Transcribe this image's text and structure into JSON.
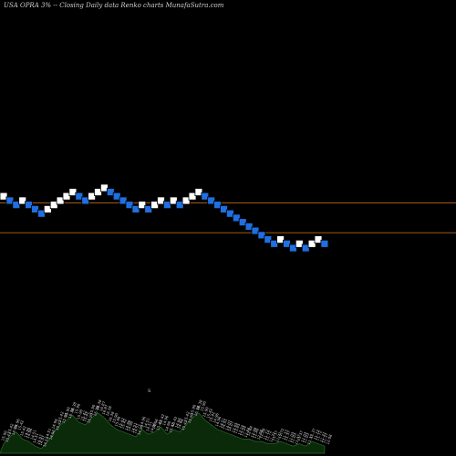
{
  "header": {
    "title": "USA OPRA 3% -- Closing Daily data Renko charts MunafaSutra.com"
  },
  "colors": {
    "background": "#000000",
    "up_brick": "#ffffff",
    "down_brick": "#1f6fe0",
    "brick_edge": "#000000",
    "level_line": "#b8671a",
    "volume_fill": "#0a2a0a",
    "volume_stroke": "#2a6a2a",
    "label_text": "#d8d8d8"
  },
  "chart_data": {
    "type": "renko",
    "box_size_percent": 3,
    "bricks": [
      {
        "dir": "up",
        "value": 15.9
      },
      {
        "dir": "down",
        "value": 15.42
      },
      {
        "dir": "down",
        "value": 14.96
      },
      {
        "dir": "up",
        "value": 15.42
      },
      {
        "dir": "down",
        "value": 14.96
      },
      {
        "dir": "down",
        "value": 14.51
      },
      {
        "dir": "down",
        "value": 14.07
      },
      {
        "dir": "up",
        "value": 14.51
      },
      {
        "dir": "up",
        "value": 14.96
      },
      {
        "dir": "up",
        "value": 15.42
      },
      {
        "dir": "up",
        "value": 15.9
      },
      {
        "dir": "up",
        "value": 16.38
      },
      {
        "dir": "down",
        "value": 15.9
      },
      {
        "dir": "down",
        "value": 15.42
      },
      {
        "dir": "up",
        "value": 15.9
      },
      {
        "dir": "up",
        "value": 16.38
      },
      {
        "dir": "up",
        "value": 16.87
      },
      {
        "dir": "down",
        "value": 16.38
      },
      {
        "dir": "down",
        "value": 15.9
      },
      {
        "dir": "down",
        "value": 15.42
      },
      {
        "dir": "down",
        "value": 14.96
      },
      {
        "dir": "down",
        "value": 14.51
      },
      {
        "dir": "up",
        "value": 14.96
      },
      {
        "dir": "down",
        "value": 14.51
      },
      {
        "dir": "up",
        "value": 14.96
      },
      {
        "dir": "up",
        "value": 15.42
      },
      {
        "dir": "down",
        "value": 14.96
      },
      {
        "dir": "up",
        "value": 15.42
      },
      {
        "dir": "down",
        "value": 14.96
      },
      {
        "dir": "up",
        "value": 15.42
      },
      {
        "dir": "up",
        "value": 15.9
      },
      {
        "dir": "up",
        "value": 16.38
      },
      {
        "dir": "down",
        "value": 15.9
      },
      {
        "dir": "down",
        "value": 15.42
      },
      {
        "dir": "down",
        "value": 14.96
      },
      {
        "dir": "down",
        "value": 14.51
      },
      {
        "dir": "down",
        "value": 14.07
      },
      {
        "dir": "down",
        "value": 13.65
      },
      {
        "dir": "down",
        "value": 13.24
      },
      {
        "dir": "down",
        "value": 12.84
      },
      {
        "dir": "down",
        "value": 12.46
      },
      {
        "dir": "down",
        "value": 12.08
      },
      {
        "dir": "down",
        "value": 11.72
      },
      {
        "dir": "down",
        "value": 11.37
      },
      {
        "dir": "up",
        "value": 11.72
      },
      {
        "dir": "down",
        "value": 11.37
      },
      {
        "dir": "down",
        "value": 11.03
      },
      {
        "dir": "up",
        "value": 11.37
      },
      {
        "dir": "down",
        "value": 11.03
      },
      {
        "dir": "up",
        "value": 11.37
      },
      {
        "dir": "up",
        "value": 11.72
      },
      {
        "dir": "down",
        "value": 11.37
      }
    ],
    "reference_lines": [
      15.18,
      12.29
    ],
    "volume": [
      4,
      7,
      9,
      6,
      5,
      3,
      2,
      5,
      9,
      12,
      14,
      16,
      13,
      12,
      15,
      17,
      15,
      12,
      10,
      9,
      8,
      7,
      10,
      8,
      9,
      11,
      8,
      10,
      9,
      12,
      15,
      17,
      14,
      12,
      10,
      9,
      8,
      7,
      6,
      6,
      5,
      5,
      4,
      4,
      5,
      4,
      3,
      4,
      3,
      5,
      4,
      3
    ],
    "volume_labels": [
      {
        "line1": "15.90",
        "line2": "15.42"
      },
      {
        "line1": "15.42",
        "line2": "14.96"
      },
      {
        "line1": "14.96",
        "line2": "15.42"
      },
      {
        "line1": "15.42",
        "line2": "14.96"
      },
      {
        "line1": "14.96",
        "line2": "14.51"
      },
      {
        "line1": "14.51",
        "line2": "14.07"
      },
      {
        "line1": "14.07",
        "line2": "14.51"
      },
      {
        "line1": "14.51",
        "line2": "14.96"
      },
      {
        "line1": "14.96",
        "line2": "15.42"
      },
      {
        "line1": "15.42",
        "line2": "15.90"
      },
      {
        "line1": "15.90",
        "line2": "16.38"
      },
      {
        "line1": "16.38",
        "line2": "15.90"
      },
      {
        "line1": "15.90",
        "line2": "15.42"
      },
      {
        "line1": "15.42",
        "line2": "15.90"
      },
      {
        "line1": "15.90",
        "line2": "16.38"
      },
      {
        "line1": "16.38",
        "line2": "16.87"
      },
      {
        "line1": "16.87",
        "line2": "16.38"
      },
      {
        "line1": "16.38",
        "line2": "15.90"
      },
      {
        "line1": "15.90",
        "line2": "15.42"
      },
      {
        "line1": "15.42",
        "line2": "14.96"
      },
      {
        "line1": "14.96",
        "line2": "14.51"
      },
      {
        "line1": "14.51",
        "line2": "14.96"
      },
      {
        "line1": "14.96",
        "line2": "14.51"
      },
      {
        "line1": "14.51",
        "line2": "14.96"
      },
      {
        "line1": "14.96",
        "line2": "15.42"
      },
      {
        "line1": "15.42",
        "line2": "14.96"
      },
      {
        "line1": "14.96",
        "line2": "15.42"
      },
      {
        "line1": "15.42",
        "line2": "14.96"
      },
      {
        "line1": "14.96",
        "line2": "15.42"
      },
      {
        "line1": "15.42",
        "line2": "15.90"
      },
      {
        "line1": "15.90",
        "line2": "16.38"
      },
      {
        "line1": "16.38",
        "line2": "15.90"
      },
      {
        "line1": "15.90",
        "line2": "15.42"
      },
      {
        "line1": "15.42",
        "line2": "14.96"
      },
      {
        "line1": "14.96",
        "line2": "14.51"
      },
      {
        "line1": "14.51",
        "line2": "14.07"
      },
      {
        "line1": "14.07",
        "line2": "13.65"
      },
      {
        "line1": "13.65",
        "line2": "13.24"
      },
      {
        "line1": "13.24",
        "line2": "12.84"
      },
      {
        "line1": "12.84",
        "line2": "12.46"
      },
      {
        "line1": "12.46",
        "line2": "12.08"
      },
      {
        "line1": "12.08",
        "line2": "11.72"
      },
      {
        "line1": "11.72",
        "line2": "11.37"
      },
      {
        "line1": "11.37",
        "line2": "11.72"
      },
      {
        "line1": "11.72",
        "line2": "11.37"
      },
      {
        "line1": "11.37",
        "line2": "11.03"
      },
      {
        "line1": "11.03",
        "line2": "11.37"
      },
      {
        "line1": "11.37",
        "line2": "11.03"
      },
      {
        "line1": "11.03",
        "line2": "11.37"
      },
      {
        "line1": "11.37",
        "line2": "11.72"
      },
      {
        "line1": "11.72",
        "line2": "11.37"
      },
      {
        "line1": "11.37",
        "line2": "12.08"
      }
    ],
    "annotations": [
      "S"
    ],
    "title": "USA OPRA 3% -- Closing Daily data Renko charts MunafaSutra.com",
    "xlabel": "",
    "ylabel": "",
    "grid": false
  }
}
